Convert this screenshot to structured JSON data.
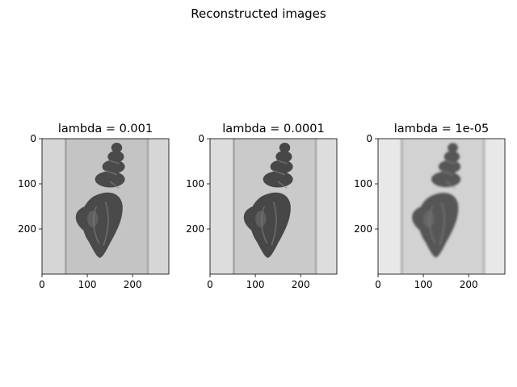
{
  "figure": {
    "suptitle": "Reconstructed images"
  },
  "chart_data": [
    {
      "type": "heatmap",
      "title": "lambda = 0.001",
      "colormap": "gray",
      "image_size": [
        280,
        300
      ],
      "xlim": [
        0,
        280
      ],
      "ylim": [
        300,
        0
      ],
      "xticks": [
        0,
        100,
        200
      ],
      "yticks": [
        0,
        100,
        200
      ],
      "grid": false,
      "background_tone": "#d6d6d6",
      "band_tone": "#c4c4c4",
      "object_tone": "#4a4a4a",
      "blur": 0
    },
    {
      "type": "heatmap",
      "title": "lambda = 0.0001",
      "colormap": "gray",
      "image_size": [
        280,
        300
      ],
      "xlim": [
        0,
        280
      ],
      "ylim": [
        300,
        0
      ],
      "xticks": [
        0,
        100,
        200
      ],
      "yticks": [
        0,
        100,
        200
      ],
      "grid": false,
      "background_tone": "#dddddd",
      "band_tone": "#cacaca",
      "object_tone": "#474747",
      "blur": 0
    },
    {
      "type": "heatmap",
      "title": "lambda = 1e-05",
      "colormap": "gray",
      "image_size": [
        280,
        300
      ],
      "xlim": [
        0,
        280
      ],
      "ylim": [
        300,
        0
      ],
      "xticks": [
        0,
        100,
        200
      ],
      "yticks": [
        0,
        100,
        200
      ],
      "grid": false,
      "background_tone": "#e8e8e8",
      "band_tone": "#d2d2d2",
      "object_tone": "#575757",
      "blur": 2.2
    }
  ]
}
